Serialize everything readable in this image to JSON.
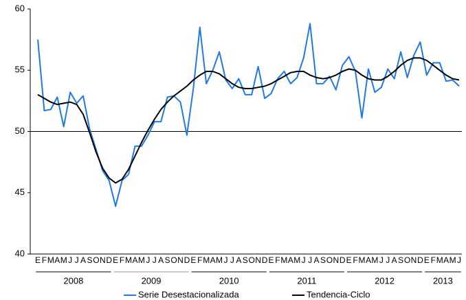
{
  "chart_data": {
    "type": "line",
    "categories": [
      "E",
      "F",
      "M",
      "A",
      "M",
      "J",
      "J",
      "A",
      "S",
      "O",
      "N",
      "D",
      "E",
      "F",
      "M",
      "A",
      "M",
      "J",
      "J",
      "A",
      "S",
      "O",
      "N",
      "D",
      "E",
      "F",
      "M",
      "A",
      "M",
      "J",
      "J",
      "A",
      "S",
      "O",
      "N",
      "D",
      "E",
      "F",
      "M",
      "A",
      "M",
      "J",
      "J",
      "A",
      "S",
      "O",
      "N",
      "D",
      "E",
      "F",
      "M",
      "A",
      "M",
      "J",
      "J",
      "A",
      "S",
      "O",
      "N",
      "D",
      "E",
      "F",
      "M",
      "A",
      "M",
      "J"
    ],
    "year_groups": [
      "2008",
      "2009",
      "2010",
      "2011",
      "2012",
      "2013"
    ],
    "series": [
      {
        "name": "Serie Desestacionalizada",
        "color": "#1f78e8",
        "values": [
          57.5,
          51.7,
          51.8,
          52.8,
          50.4,
          53.2,
          52.3,
          52.9,
          50.2,
          48.5,
          46.8,
          46.0,
          43.9,
          46.0,
          46.5,
          48.8,
          48.8,
          49.7,
          50.8,
          50.8,
          52.8,
          52.9,
          52.4,
          49.7,
          53.5,
          58.5,
          53.9,
          55.0,
          56.5,
          54.2,
          53.5,
          54.3,
          53.0,
          53.0,
          55.3,
          52.7,
          53.1,
          54.3,
          54.9,
          53.9,
          54.4,
          56.0,
          58.8,
          53.9,
          53.9,
          54.5,
          53.4,
          55.4,
          56.1,
          54.9,
          51.1,
          55.1,
          53.2,
          53.6,
          55.1,
          54.3,
          56.5,
          54.4,
          56.2,
          57.3,
          54.6,
          55.6,
          55.6,
          54.1,
          54.2,
          53.7
        ]
      },
      {
        "name": "Tendencia-Ciclo",
        "color": "#000000",
        "values": [
          53.0,
          52.7,
          52.4,
          52.2,
          52.3,
          52.4,
          52.2,
          51.4,
          49.9,
          48.3,
          47.0,
          46.2,
          45.8,
          46.1,
          46.9,
          48.0,
          49.1,
          50.1,
          51.0,
          51.8,
          52.4,
          52.9,
          53.3,
          53.7,
          54.2,
          54.6,
          54.9,
          54.9,
          54.7,
          54.3,
          53.9,
          53.6,
          53.5,
          53.5,
          53.6,
          53.7,
          53.9,
          54.2,
          54.5,
          54.8,
          54.9,
          54.9,
          54.6,
          54.4,
          54.3,
          54.4,
          54.6,
          54.9,
          55.1,
          55.0,
          54.6,
          54.3,
          54.2,
          54.2,
          54.5,
          54.9,
          55.4,
          55.8,
          56.0,
          56.0,
          55.8,
          55.4,
          55.0,
          54.6,
          54.3,
          54.2
        ]
      }
    ],
    "ylim": [
      40,
      60
    ],
    "yticks": [
      40,
      45,
      50,
      55,
      60
    ],
    "reference_line": 50,
    "legend": "bottom"
  }
}
